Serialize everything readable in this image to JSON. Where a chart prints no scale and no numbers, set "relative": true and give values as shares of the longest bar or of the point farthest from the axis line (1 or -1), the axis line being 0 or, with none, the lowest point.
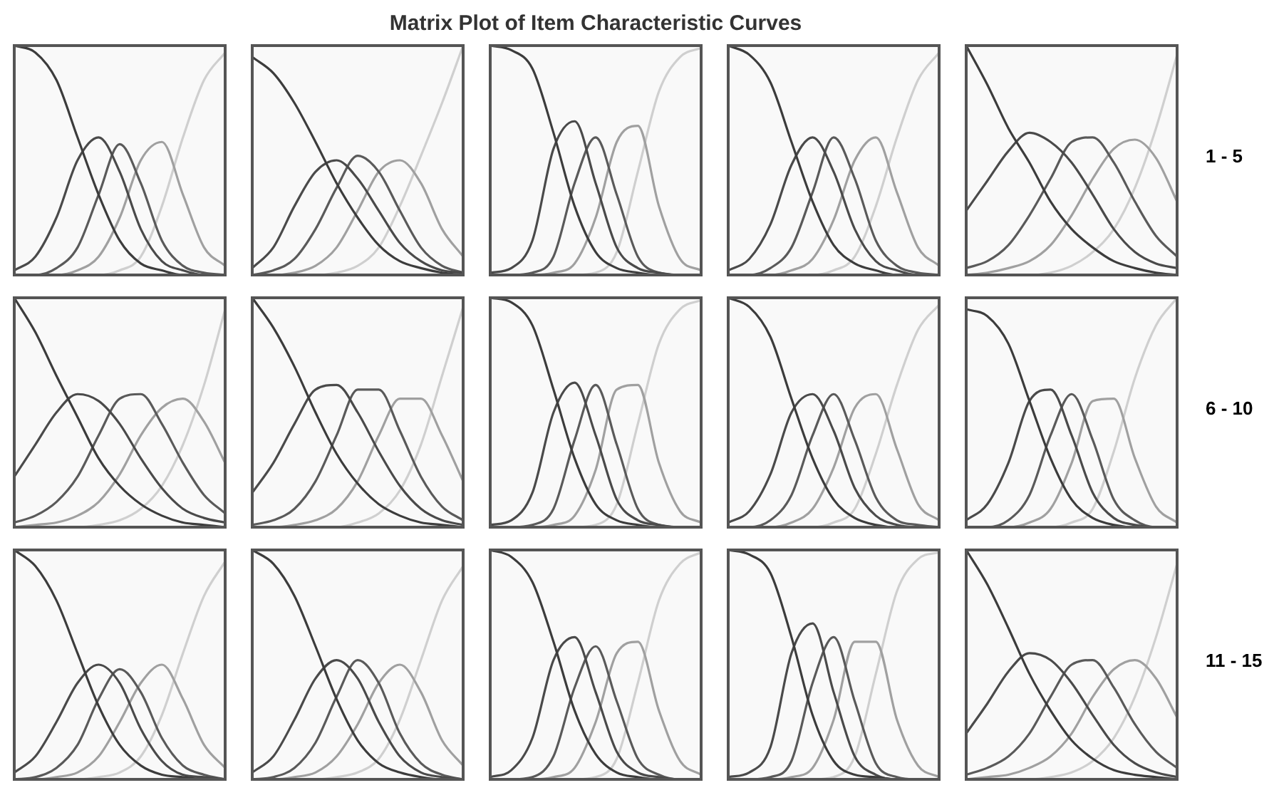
{
  "chart_data": [
    {
      "type": "line",
      "relative": true,
      "legend": false,
      "categories": [
        null,
        null,
        null,
        null,
        null,
        null,
        null,
        null,
        null,
        null,
        null
      ],
      "series": [
        {
          "color": "#3c3c3c",
          "values": [
            1,
            0.97,
            0.85,
            0.6,
            0.35,
            0.15,
            0.05,
            0.02,
            0,
            0,
            0
          ]
        },
        {
          "color": "#4a4a4a",
          "values": [
            0.02,
            0.08,
            0.25,
            0.5,
            0.6,
            0.45,
            0.2,
            0.06,
            0.02,
            0,
            0
          ]
        },
        {
          "color": "#5a5a5a",
          "values": [
            0,
            0,
            0.03,
            0.12,
            0.35,
            0.57,
            0.4,
            0.15,
            0.04,
            0.01,
            0
          ]
        },
        {
          "color": "#a0a0a0",
          "values": [
            0,
            0,
            0,
            0.02,
            0.08,
            0.25,
            0.5,
            0.58,
            0.35,
            0.12,
            0.04
          ]
        },
        {
          "color": "#cfcfcf",
          "values": [
            0,
            0,
            0,
            0,
            0,
            0.02,
            0.08,
            0.3,
            0.6,
            0.85,
            0.97
          ]
        }
      ]
    },
    {
      "type": "line",
      "relative": true,
      "legend": false,
      "categories": [
        null,
        null,
        null,
        null,
        null,
        null,
        null,
        null,
        null,
        null,
        null
      ],
      "series": [
        {
          "color": "#3c3c3c",
          "values": [
            0.95,
            0.88,
            0.75,
            0.58,
            0.4,
            0.25,
            0.13,
            0.06,
            0.03,
            0.01,
            0
          ]
        },
        {
          "color": "#4a4a4a",
          "values": [
            0.03,
            0.12,
            0.3,
            0.45,
            0.5,
            0.42,
            0.28,
            0.14,
            0.06,
            0.02,
            0.01
          ]
        },
        {
          "color": "#5a5a5a",
          "values": [
            0,
            0.02,
            0.07,
            0.2,
            0.38,
            0.52,
            0.45,
            0.28,
            0.12,
            0.04,
            0.01
          ]
        },
        {
          "color": "#a0a0a0",
          "values": [
            0,
            0,
            0.01,
            0.04,
            0.12,
            0.28,
            0.45,
            0.5,
            0.4,
            0.2,
            0.08
          ]
        },
        {
          "color": "#cfcfcf",
          "values": [
            0,
            0,
            0,
            0,
            0.01,
            0.04,
            0.12,
            0.3,
            0.52,
            0.75,
            1
          ]
        }
      ]
    },
    {
      "type": "line",
      "title": "Matrix Plot of Item Characteristic Curves",
      "relative": true,
      "legend": false,
      "categories": [
        null,
        null,
        null,
        null,
        null,
        null,
        null,
        null,
        null,
        null,
        null
      ],
      "series": [
        {
          "color": "#3c3c3c",
          "values": [
            1,
            0.98,
            0.9,
            0.62,
            0.3,
            0.1,
            0.03,
            0.01,
            0,
            0,
            0
          ]
        },
        {
          "color": "#4a4a4a",
          "values": [
            0.01,
            0.03,
            0.15,
            0.55,
            0.67,
            0.4,
            0.12,
            0.03,
            0.01,
            0,
            0
          ]
        },
        {
          "color": "#5a5a5a",
          "values": [
            0,
            0,
            0.01,
            0.08,
            0.4,
            0.6,
            0.35,
            0.08,
            0.01,
            0,
            0
          ]
        },
        {
          "color": "#a0a0a0",
          "values": [
            0,
            0,
            0,
            0.01,
            0.05,
            0.25,
            0.58,
            0.65,
            0.3,
            0.07,
            0.02
          ]
        },
        {
          "color": "#cfcfcf",
          "values": [
            0,
            0,
            0,
            0,
            0,
            0.01,
            0.1,
            0.45,
            0.8,
            0.95,
            0.99
          ]
        }
      ]
    },
    {
      "type": "line",
      "relative": true,
      "legend": false,
      "categories": [
        null,
        null,
        null,
        null,
        null,
        null,
        null,
        null,
        null,
        null,
        null
      ],
      "series": [
        {
          "color": "#3c3c3c",
          "values": [
            1,
            0.96,
            0.84,
            0.58,
            0.32,
            0.13,
            0.05,
            0.02,
            0,
            0,
            0
          ]
        },
        {
          "color": "#4a4a4a",
          "values": [
            0.02,
            0.07,
            0.22,
            0.48,
            0.6,
            0.45,
            0.2,
            0.06,
            0.02,
            0,
            0
          ]
        },
        {
          "color": "#5a5a5a",
          "values": [
            0,
            0,
            0.03,
            0.12,
            0.36,
            0.6,
            0.42,
            0.15,
            0.04,
            0.01,
            0
          ]
        },
        {
          "color": "#a0a0a0",
          "values": [
            0,
            0,
            0,
            0.02,
            0.07,
            0.24,
            0.5,
            0.6,
            0.36,
            0.12,
            0.04
          ]
        },
        {
          "color": "#cfcfcf",
          "values": [
            0,
            0,
            0,
            0,
            0,
            0.02,
            0.08,
            0.3,
            0.6,
            0.85,
            0.97
          ]
        }
      ]
    },
    {
      "type": "line",
      "relative": true,
      "legend": false,
      "annotations": [
        "1 - 5"
      ],
      "categories": [
        null,
        null,
        null,
        null,
        null,
        null,
        null,
        null,
        null,
        null,
        null
      ],
      "series": [
        {
          "color": "#3c3c3c",
          "values": [
            1,
            0.83,
            0.64,
            0.49,
            0.32,
            0.2,
            0.12,
            0.06,
            0.03,
            0.01,
            0
          ]
        },
        {
          "color": "#4a4a4a",
          "values": [
            0.28,
            0.41,
            0.54,
            0.62,
            0.58,
            0.49,
            0.35,
            0.2,
            0.1,
            0.05,
            0.03
          ]
        },
        {
          "color": "#5a5a5a",
          "values": [
            0.03,
            0.06,
            0.13,
            0.26,
            0.42,
            0.58,
            0.6,
            0.49,
            0.32,
            0.17,
            0.08
          ]
        },
        {
          "color": "#a0a0a0",
          "values": [
            0,
            0.01,
            0.03,
            0.06,
            0.13,
            0.26,
            0.42,
            0.55,
            0.59,
            0.51,
            0.32
          ]
        },
        {
          "color": "#cfcfcf",
          "values": [
            0,
            0,
            0,
            0,
            0.01,
            0.04,
            0.1,
            0.2,
            0.38,
            0.64,
            0.96
          ]
        }
      ]
    },
    {
      "type": "line",
      "relative": true,
      "legend": false,
      "categories": [
        null,
        null,
        null,
        null,
        null,
        null,
        null,
        null,
        null,
        null,
        null
      ],
      "series": [
        {
          "color": "#3c3c3c",
          "values": [
            1,
            0.85,
            0.66,
            0.48,
            0.3,
            0.18,
            0.1,
            0.05,
            0.02,
            0.01,
            0
          ]
        },
        {
          "color": "#4a4a4a",
          "values": [
            0.22,
            0.36,
            0.5,
            0.58,
            0.55,
            0.45,
            0.3,
            0.17,
            0.08,
            0.04,
            0.02
          ]
        },
        {
          "color": "#5a5a5a",
          "values": [
            0.02,
            0.05,
            0.11,
            0.22,
            0.4,
            0.56,
            0.58,
            0.45,
            0.28,
            0.14,
            0.06
          ]
        },
        {
          "color": "#a0a0a0",
          "values": [
            0,
            0.01,
            0.02,
            0.05,
            0.11,
            0.23,
            0.4,
            0.52,
            0.56,
            0.46,
            0.28
          ]
        },
        {
          "color": "#cfcfcf",
          "values": [
            0,
            0,
            0,
            0,
            0.01,
            0.03,
            0.08,
            0.18,
            0.36,
            0.62,
            0.95
          ]
        }
      ]
    },
    {
      "type": "line",
      "relative": true,
      "legend": false,
      "categories": [
        null,
        null,
        null,
        null,
        null,
        null,
        null,
        null,
        null,
        null,
        null
      ],
      "series": [
        {
          "color": "#3c3c3c",
          "values": [
            1,
            0.87,
            0.7,
            0.5,
            0.32,
            0.19,
            0.1,
            0.05,
            0.02,
            0.01,
            0
          ]
        },
        {
          "color": "#4a4a4a",
          "values": [
            0.15,
            0.28,
            0.45,
            0.6,
            0.62,
            0.5,
            0.33,
            0.18,
            0.08,
            0.03,
            0.01
          ]
        },
        {
          "color": "#5a5a5a",
          "values": [
            0.01,
            0.03,
            0.08,
            0.2,
            0.4,
            0.6,
            0.6,
            0.42,
            0.22,
            0.09,
            0.03
          ]
        },
        {
          "color": "#a0a0a0",
          "values": [
            0,
            0,
            0.01,
            0.03,
            0.08,
            0.2,
            0.4,
            0.56,
            0.56,
            0.4,
            0.2
          ]
        },
        {
          "color": "#cfcfcf",
          "values": [
            0,
            0,
            0,
            0,
            0,
            0.02,
            0.06,
            0.16,
            0.36,
            0.66,
            0.96
          ]
        }
      ]
    },
    {
      "type": "line",
      "relative": true,
      "legend": false,
      "categories": [
        null,
        null,
        null,
        null,
        null,
        null,
        null,
        null,
        null,
        null,
        null
      ],
      "series": [
        {
          "color": "#3c3c3c",
          "values": [
            1,
            0.98,
            0.88,
            0.6,
            0.3,
            0.1,
            0.03,
            0.01,
            0,
            0,
            0
          ]
        },
        {
          "color": "#4a4a4a",
          "values": [
            0.01,
            0.03,
            0.15,
            0.5,
            0.63,
            0.4,
            0.12,
            0.03,
            0.01,
            0,
            0
          ]
        },
        {
          "color": "#5a5a5a",
          "values": [
            0,
            0,
            0.01,
            0.08,
            0.38,
            0.62,
            0.36,
            0.08,
            0.01,
            0,
            0
          ]
        },
        {
          "color": "#a0a0a0",
          "values": [
            0,
            0,
            0,
            0.01,
            0.05,
            0.25,
            0.6,
            0.62,
            0.28,
            0.07,
            0.02
          ]
        },
        {
          "color": "#cfcfcf",
          "values": [
            0,
            0,
            0,
            0,
            0,
            0.01,
            0.1,
            0.45,
            0.8,
            0.95,
            0.99
          ]
        }
      ]
    },
    {
      "type": "line",
      "relative": true,
      "legend": false,
      "categories": [
        null,
        null,
        null,
        null,
        null,
        null,
        null,
        null,
        null,
        null,
        null
      ],
      "series": [
        {
          "color": "#3c3c3c",
          "values": [
            1,
            0.96,
            0.83,
            0.56,
            0.3,
            0.12,
            0.04,
            0.01,
            0,
            0,
            0
          ]
        },
        {
          "color": "#4a4a4a",
          "values": [
            0.02,
            0.07,
            0.23,
            0.5,
            0.58,
            0.42,
            0.17,
            0.05,
            0.01,
            0,
            0
          ]
        },
        {
          "color": "#5a5a5a",
          "values": [
            0,
            0,
            0.03,
            0.14,
            0.4,
            0.58,
            0.38,
            0.13,
            0.03,
            0.01,
            0
          ]
        },
        {
          "color": "#a0a0a0",
          "values": [
            0,
            0,
            0,
            0.02,
            0.08,
            0.26,
            0.52,
            0.58,
            0.34,
            0.1,
            0.03
          ]
        },
        {
          "color": "#cfcfcf",
          "values": [
            0,
            0,
            0,
            0,
            0,
            0.02,
            0.08,
            0.32,
            0.62,
            0.86,
            0.97
          ]
        }
      ]
    },
    {
      "type": "line",
      "relative": true,
      "legend": false,
      "annotations": [
        "6 - 10"
      ],
      "categories": [
        null,
        null,
        null,
        null,
        null,
        null,
        null,
        null,
        null,
        null,
        null
      ],
      "series": [
        {
          "color": "#3c3c3c",
          "values": [
            0.95,
            0.92,
            0.8,
            0.55,
            0.3,
            0.12,
            0.04,
            0.01,
            0,
            0,
            0
          ]
        },
        {
          "color": "#4a4a4a",
          "values": [
            0.03,
            0.1,
            0.28,
            0.55,
            0.6,
            0.4,
            0.15,
            0.04,
            0.01,
            0,
            0
          ]
        },
        {
          "color": "#5a5a5a",
          "values": [
            0,
            0,
            0.03,
            0.14,
            0.4,
            0.58,
            0.38,
            0.12,
            0.03,
            0,
            0
          ]
        },
        {
          "color": "#a0a0a0",
          "values": [
            0,
            0,
            0,
            0.02,
            0.08,
            0.28,
            0.55,
            0.56,
            0.3,
            0.09,
            0.02
          ]
        },
        {
          "color": "#cfcfcf",
          "values": [
            0,
            0,
            0,
            0,
            0,
            0.02,
            0.08,
            0.33,
            0.65,
            0.88,
            1
          ]
        }
      ]
    },
    {
      "type": "line",
      "relative": true,
      "legend": false,
      "categories": [
        null,
        null,
        null,
        null,
        null,
        null,
        null,
        null,
        null,
        null,
        null
      ],
      "series": [
        {
          "color": "#3c3c3c",
          "values": [
            1,
            0.93,
            0.78,
            0.55,
            0.32,
            0.15,
            0.06,
            0.02,
            0.01,
            0,
            0
          ]
        },
        {
          "color": "#4a4a4a",
          "values": [
            0.03,
            0.1,
            0.25,
            0.42,
            0.5,
            0.42,
            0.22,
            0.08,
            0.02,
            0.01,
            0
          ]
        },
        {
          "color": "#5a5a5a",
          "values": [
            0,
            0.01,
            0.05,
            0.15,
            0.35,
            0.48,
            0.38,
            0.18,
            0.06,
            0.02,
            0
          ]
        },
        {
          "color": "#a0a0a0",
          "values": [
            0,
            0,
            0.01,
            0.03,
            0.1,
            0.25,
            0.42,
            0.5,
            0.35,
            0.15,
            0.05
          ]
        },
        {
          "color": "#cfcfcf",
          "values": [
            0,
            0,
            0,
            0,
            0.01,
            0.03,
            0.1,
            0.28,
            0.55,
            0.8,
            0.95
          ]
        }
      ]
    },
    {
      "type": "line",
      "relative": true,
      "legend": false,
      "categories": [
        null,
        null,
        null,
        null,
        null,
        null,
        null,
        null,
        null,
        null,
        null
      ],
      "series": [
        {
          "color": "#3c3c3c",
          "values": [
            1,
            0.94,
            0.8,
            0.58,
            0.35,
            0.17,
            0.07,
            0.03,
            0.01,
            0,
            0
          ]
        },
        {
          "color": "#4a4a4a",
          "values": [
            0.03,
            0.1,
            0.26,
            0.44,
            0.52,
            0.44,
            0.25,
            0.1,
            0.03,
            0.01,
            0
          ]
        },
        {
          "color": "#5a5a5a",
          "values": [
            0,
            0.01,
            0.05,
            0.16,
            0.36,
            0.52,
            0.42,
            0.2,
            0.07,
            0.02,
            0
          ]
        },
        {
          "color": "#a0a0a0",
          "values": [
            0,
            0,
            0.01,
            0.03,
            0.1,
            0.24,
            0.42,
            0.5,
            0.38,
            0.17,
            0.06
          ]
        },
        {
          "color": "#cfcfcf",
          "values": [
            0,
            0,
            0,
            0,
            0.01,
            0.03,
            0.09,
            0.26,
            0.52,
            0.78,
            0.93
          ]
        }
      ]
    },
    {
      "type": "line",
      "relative": true,
      "legend": false,
      "categories": [
        null,
        null,
        null,
        null,
        null,
        null,
        null,
        null,
        null,
        null,
        null
      ],
      "series": [
        {
          "color": "#3c3c3c",
          "values": [
            1,
            0.97,
            0.86,
            0.6,
            0.3,
            0.11,
            0.03,
            0.01,
            0,
            0,
            0
          ]
        },
        {
          "color": "#4a4a4a",
          "values": [
            0.01,
            0.04,
            0.18,
            0.52,
            0.62,
            0.38,
            0.12,
            0.03,
            0.01,
            0,
            0
          ]
        },
        {
          "color": "#5a5a5a",
          "values": [
            0,
            0,
            0.01,
            0.1,
            0.4,
            0.58,
            0.34,
            0.09,
            0.02,
            0,
            0
          ]
        },
        {
          "color": "#a0a0a0",
          "values": [
            0,
            0,
            0,
            0.01,
            0.05,
            0.25,
            0.55,
            0.6,
            0.3,
            0.08,
            0.02
          ]
        },
        {
          "color": "#cfcfcf",
          "values": [
            0,
            0,
            0,
            0,
            0,
            0.01,
            0.09,
            0.42,
            0.78,
            0.94,
            0.99
          ]
        }
      ]
    },
    {
      "type": "line",
      "relative": true,
      "legend": false,
      "categories": [
        null,
        null,
        null,
        null,
        null,
        null,
        null,
        null,
        null,
        null,
        null
      ],
      "series": [
        {
          "color": "#3c3c3c",
          "values": [
            1,
            0.98,
            0.9,
            0.62,
            0.28,
            0.08,
            0.02,
            0.01,
            0,
            0,
            0
          ]
        },
        {
          "color": "#4a4a4a",
          "values": [
            0.01,
            0.03,
            0.14,
            0.55,
            0.68,
            0.38,
            0.1,
            0.02,
            0,
            0,
            0
          ]
        },
        {
          "color": "#5a5a5a",
          "values": [
            0,
            0,
            0.01,
            0.08,
            0.42,
            0.62,
            0.34,
            0.07,
            0.01,
            0,
            0
          ]
        },
        {
          "color": "#a0a0a0",
          "values": [
            0,
            0,
            0,
            0.01,
            0.05,
            0.26,
            0.6,
            0.6,
            0.26,
            0.06,
            0.01
          ]
        },
        {
          "color": "#cfcfcf",
          "values": [
            0,
            0,
            0,
            0,
            0,
            0.01,
            0.1,
            0.46,
            0.82,
            0.96,
            0.99
          ]
        }
      ]
    },
    {
      "type": "line",
      "relative": true,
      "legend": false,
      "annotations": [
        "11 - 15"
      ],
      "categories": [
        null,
        null,
        null,
        null,
        null,
        null,
        null,
        null,
        null,
        null,
        null
      ],
      "series": [
        {
          "color": "#3c3c3c",
          "values": [
            1,
            0.85,
            0.66,
            0.46,
            0.3,
            0.17,
            0.09,
            0.04,
            0.02,
            0.01,
            0
          ]
        },
        {
          "color": "#4a4a4a",
          "values": [
            0.2,
            0.33,
            0.47,
            0.55,
            0.52,
            0.42,
            0.28,
            0.15,
            0.07,
            0.03,
            0.01
          ]
        },
        {
          "color": "#5a5a5a",
          "values": [
            0.02,
            0.05,
            0.1,
            0.2,
            0.36,
            0.5,
            0.52,
            0.4,
            0.24,
            0.12,
            0.05
          ]
        },
        {
          "color": "#a0a0a0",
          "values": [
            0,
            0.01,
            0.02,
            0.05,
            0.1,
            0.2,
            0.36,
            0.48,
            0.52,
            0.44,
            0.27
          ]
        },
        {
          "color": "#cfcfcf",
          "values": [
            0,
            0,
            0,
            0,
            0.01,
            0.03,
            0.08,
            0.18,
            0.36,
            0.62,
            0.94
          ]
        }
      ]
    }
  ]
}
